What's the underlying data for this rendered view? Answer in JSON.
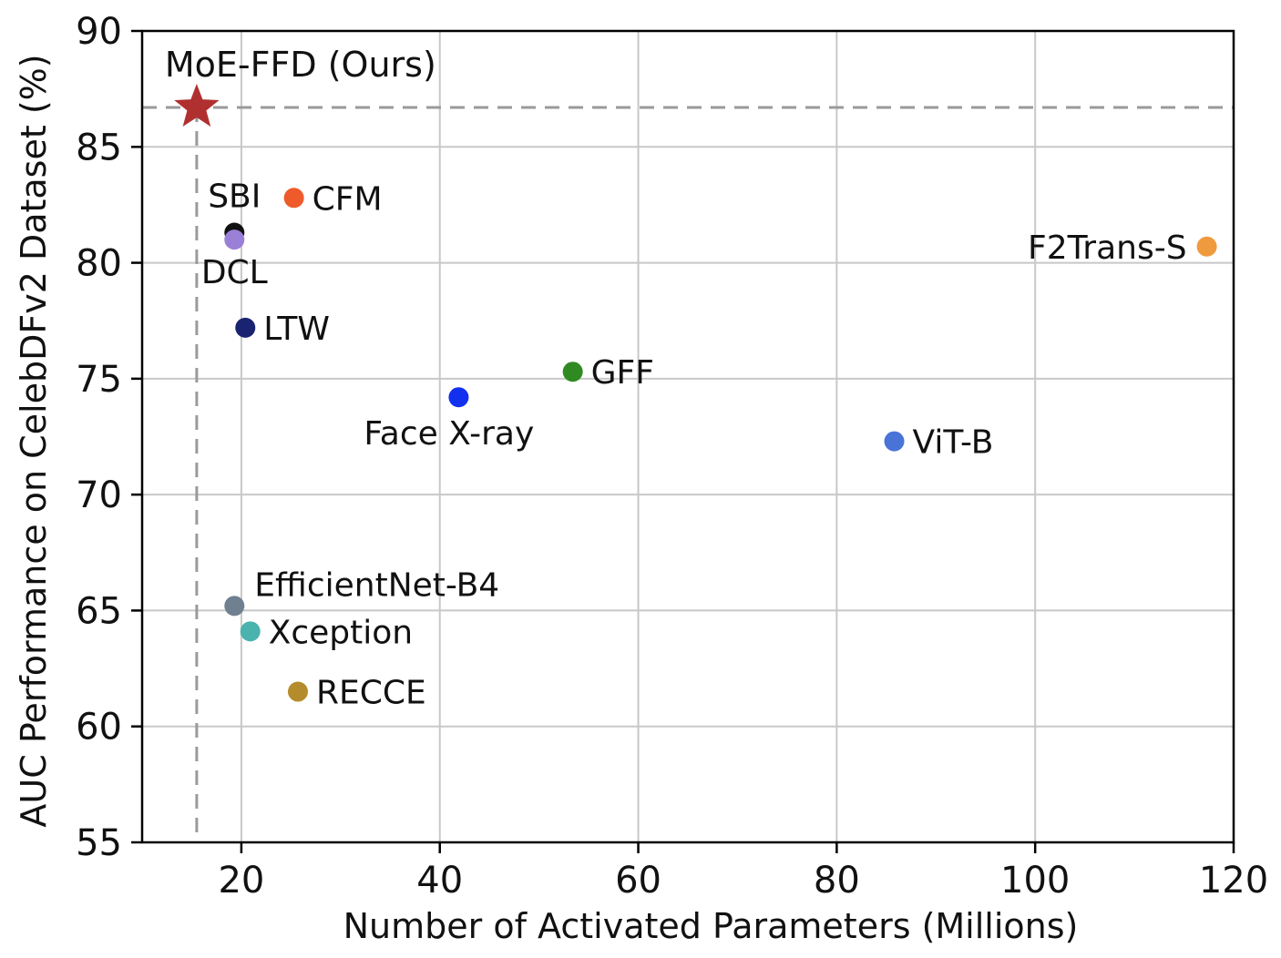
{
  "chart_data": {
    "type": "scatter",
    "title": "",
    "xlabel": "Number of Activated Parameters (Millions)",
    "ylabel": "AUC Performance on CelebDFv2 Dataset (%)",
    "xlim": [
      10,
      120
    ],
    "ylim": [
      55,
      90
    ],
    "x_ticks": [
      20,
      40,
      60,
      80,
      100,
      120
    ],
    "y_ticks": [
      55,
      60,
      65,
      70,
      75,
      80,
      85,
      90
    ],
    "grid": true,
    "legend": "none",
    "highlight": {
      "name": "MoE-FFD (Ours)",
      "x": 15.5,
      "y": 86.7,
      "marker": "star",
      "color": "#b03030",
      "reference_lines": "dashed"
    },
    "points": [
      {
        "name": "SBI",
        "x": 19.3,
        "y": 81.3,
        "color": "#111111",
        "label_pos": "above"
      },
      {
        "name": "CFM",
        "x": 25.3,
        "y": 82.8,
        "color": "#ee5a2a",
        "label_pos": "right"
      },
      {
        "name": "DCL",
        "x": 19.3,
        "y": 81.0,
        "color": "#9a7fd6",
        "label_pos": "below"
      },
      {
        "name": "LTW",
        "x": 20.4,
        "y": 77.2,
        "color": "#1a2370",
        "label_pos": "right"
      },
      {
        "name": "GFF",
        "x": 53.4,
        "y": 75.3,
        "color": "#2f8a22",
        "label_pos": "right"
      },
      {
        "name": "Face X-ray",
        "x": 41.9,
        "y": 74.2,
        "color": "#1230ee",
        "label_pos": "below-left"
      },
      {
        "name": "ViT-B",
        "x": 85.8,
        "y": 72.3,
        "color": "#4a73d8",
        "label_pos": "right"
      },
      {
        "name": "F2Trans-S",
        "x": 117.3,
        "y": 80.7,
        "color": "#f09a3e",
        "label_pos": "left"
      },
      {
        "name": "EfficientNet-B4",
        "x": 19.3,
        "y": 65.2,
        "color": "#6f8090",
        "label_pos": "above-right"
      },
      {
        "name": "Xception",
        "x": 20.9,
        "y": 64.1,
        "color": "#4ab3ae",
        "label_pos": "right"
      },
      {
        "name": "RECCE",
        "x": 25.7,
        "y": 61.5,
        "color": "#b58c2b",
        "label_pos": "right"
      }
    ]
  }
}
